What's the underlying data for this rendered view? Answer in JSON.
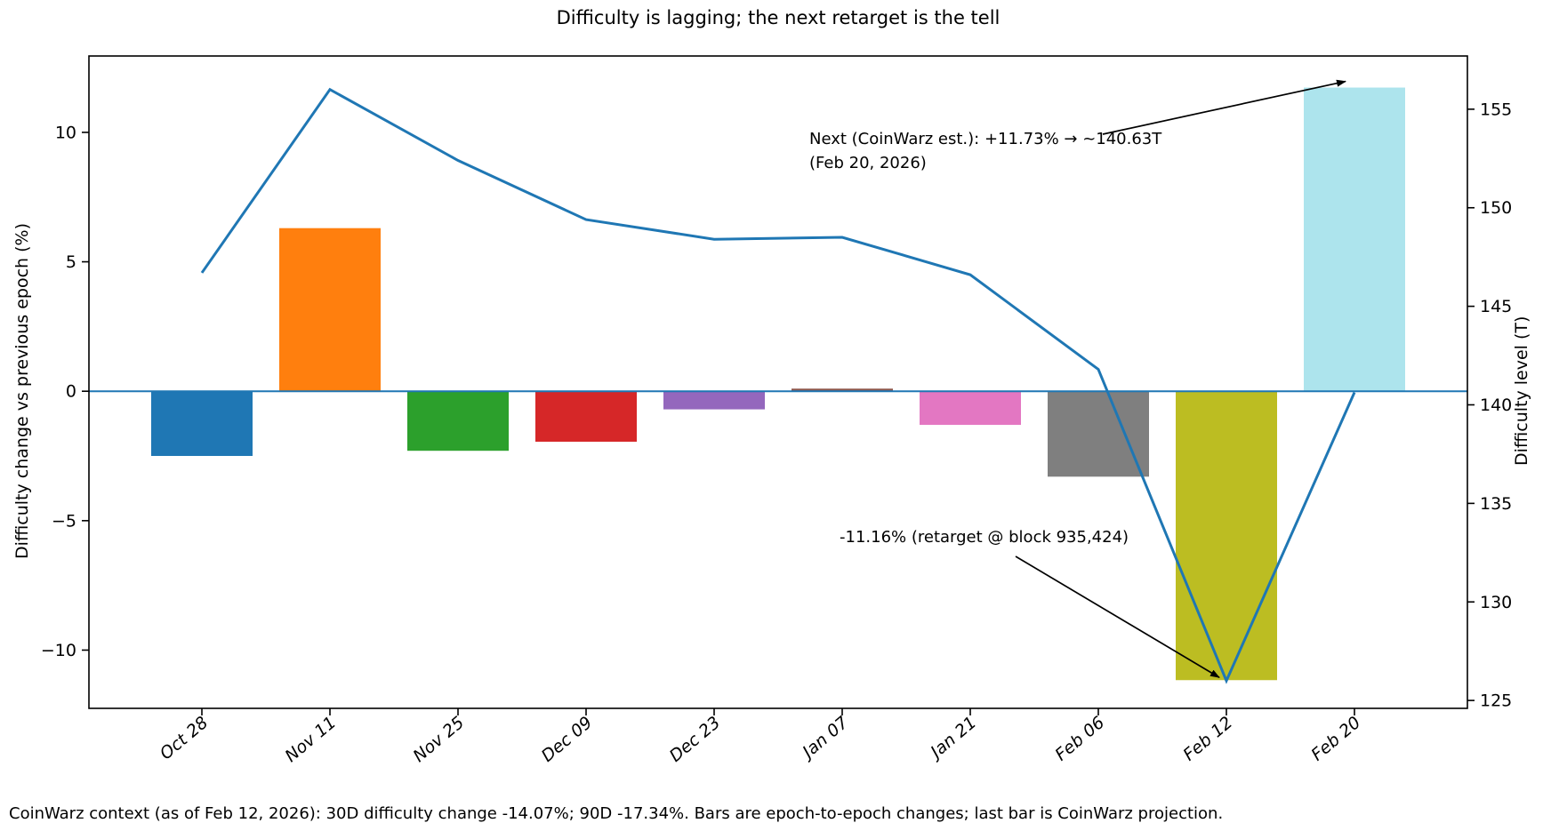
{
  "title": "Difficulty is lagging; the next retarget is the tell",
  "footer": "CoinWarz context (as of Feb 12, 2026): 30D difficulty change -14.07%; 90D -17.34%. Bars are epoch-to-epoch changes; last bar is CoinWarz projection.",
  "left_axis": {
    "label": "Difficulty change vs previous epoch (%)"
  },
  "right_axis": {
    "label": "Difficulty level (T)"
  },
  "annotations": {
    "next_line1": "Next (CoinWarz est.): +11.73% → ~140.63T",
    "next_line2": "(Feb 20, 2026)",
    "retarget": "-11.16% (retarget @ block 935,424)"
  },
  "chart_data": {
    "type": "bar",
    "categories": [
      "Oct 28",
      "Nov 11",
      "Nov 25",
      "Dec 09",
      "Dec 23",
      "Jan 07",
      "Jan 21",
      "Feb 06",
      "Feb 12",
      "Feb 20"
    ],
    "series": [
      {
        "name": "Difficulty change vs previous epoch (%)",
        "type": "bar",
        "axis": "left",
        "values": [
          -2.5,
          6.3,
          -2.3,
          -1.95,
          -0.7,
          0.1,
          -1.3,
          -3.3,
          -11.16,
          11.73
        ],
        "colors": [
          "#1f77b4",
          "#ff7f0e",
          "#2ca02c",
          "#d62728",
          "#9467bd",
          "#8c564b",
          "#e377c2",
          "#7f7f7f",
          "#bcbd22",
          "#ade4ed"
        ]
      },
      {
        "name": "Difficulty level (T)",
        "type": "line",
        "axis": "right",
        "values": [
          146.7,
          156.0,
          152.4,
          149.4,
          148.4,
          148.5,
          146.6,
          141.8,
          126.0,
          140.63
        ],
        "color": "#1f77b4"
      }
    ],
    "left_ylabel": "Difficulty change vs previous epoch (%)",
    "right_ylabel": "Difficulty level (T)",
    "left_ticks": [
      -10,
      -5,
      0,
      5,
      10
    ],
    "right_ticks": [
      125,
      130,
      135,
      140,
      145,
      150,
      155
    ],
    "left_ylim": [
      -12.25,
      12.95
    ],
    "right_ylim": [
      124.6,
      157.7
    ],
    "zero_line": {
      "axis": "left",
      "value": 0,
      "color": "#1f77b4"
    },
    "spine_color": "#000000",
    "legend": "none",
    "grid": false
  }
}
